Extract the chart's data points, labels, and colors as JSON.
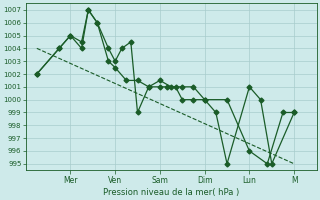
{
  "xlabel": "Pression niveau de la mer( hPa )",
  "bg_color": "#ceeaea",
  "grid_color": "#a8cccc",
  "line_color": "#1a5c28",
  "ylim": [
    994.5,
    1007.5
  ],
  "yticks": [
    995,
    996,
    997,
    998,
    999,
    1000,
    1001,
    1002,
    1003,
    1004,
    1005,
    1006,
    1007
  ],
  "day_labels": [
    "Mer",
    "Ven",
    "Sam",
    "Dim",
    "Lun",
    "M"
  ],
  "day_positions": [
    2,
    4,
    6,
    8,
    10,
    12
  ],
  "xlim": [
    0,
    13
  ],
  "series1_x": [
    0.5,
    1.5,
    2.0,
    2.5,
    2.8,
    3.2,
    3.7,
    4.0,
    4.3,
    4.7,
    5.0,
    5.5,
    6.0,
    6.5,
    7.0,
    7.5,
    8.0,
    8.5,
    9.0,
    10.0,
    10.5,
    11.0,
    12.0
  ],
  "series1_y": [
    1002,
    1004,
    1005,
    1004.5,
    1007,
    1006,
    1004,
    1003,
    1004,
    1004.5,
    999,
    1001,
    1001.5,
    1001,
    1001,
    1001,
    1000,
    999,
    995,
    1001,
    1000,
    995,
    999
  ],
  "series2_x": [
    0.5,
    1.5,
    2.0,
    2.5,
    2.8,
    3.2,
    3.7,
    4.0,
    4.5,
    5.0,
    5.5,
    6.0,
    6.3,
    6.7,
    7.0,
    7.5,
    8.0,
    9.0,
    10.0,
    10.8,
    11.5,
    12.0
  ],
  "series2_y": [
    1002,
    1004,
    1005,
    1004,
    1007,
    1006,
    1003,
    1002.5,
    1001.5,
    1001.5,
    1001,
    1001,
    1001,
    1001,
    1000,
    1000,
    1000,
    1000,
    996,
    995,
    999,
    999
  ],
  "trend_x": [
    0.5,
    12.0
  ],
  "trend_y": [
    1004,
    995
  ]
}
